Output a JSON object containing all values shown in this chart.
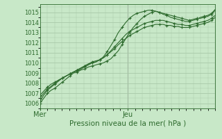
{
  "title": "",
  "xlabel": "Pression niveau de la mer( hPa )",
  "ylabel": "",
  "bg_color": "#c8e8c8",
  "grid_color": "#a8c8a8",
  "line_color": "#2d6a2d",
  "marker_color": "#2d6a2d",
  "xlim": [
    0,
    48
  ],
  "ylim": [
    1005.5,
    1015.8
  ],
  "yticks": [
    1006,
    1007,
    1008,
    1009,
    1010,
    1011,
    1012,
    1013,
    1014,
    1015
  ],
  "xtick_positions": [
    0,
    24
  ],
  "xtick_labels": [
    "Mer",
    "Jeu"
  ],
  "vline_x": 24,
  "series": [
    [
      1006.0,
      1006.5,
      1007.0,
      1007.3,
      1007.5,
      1007.8,
      1008.1,
      1008.4,
      1008.7,
      1009.0,
      1009.1,
      1009.3,
      1009.4,
      1009.6,
      1009.7,
      1009.8,
      1009.9,
      1010.0,
      1010.2,
      1010.4,
      1010.8,
      1011.2,
      1011.8,
      1012.4,
      1013.0,
      1013.5,
      1013.9,
      1014.3,
      1014.6,
      1014.8,
      1015.0,
      1015.1,
      1015.0,
      1014.9,
      1014.8,
      1014.7,
      1014.6,
      1014.5,
      1014.4,
      1014.3,
      1014.2,
      1014.3,
      1014.4,
      1014.4,
      1014.5,
      1014.6,
      1014.8,
      1015.2
    ],
    [
      1006.2,
      1006.8,
      1007.3,
      1007.6,
      1007.9,
      1008.2,
      1008.5,
      1008.7,
      1008.9,
      1009.1,
      1009.2,
      1009.4,
      1009.6,
      1009.8,
      1010.0,
      1010.1,
      1010.3,
      1010.6,
      1011.1,
      1011.7,
      1012.3,
      1013.0,
      1013.5,
      1014.0,
      1014.4,
      1014.7,
      1014.9,
      1015.0,
      1015.1,
      1015.2,
      1015.2,
      1015.1,
      1015.0,
      1014.8,
      1014.7,
      1014.5,
      1014.4,
      1014.3,
      1014.2,
      1014.1,
      1014.1,
      1014.2,
      1014.3,
      1014.5,
      1014.6,
      1014.7,
      1014.9,
      1015.3
    ],
    [
      1006.5,
      1007.0,
      1007.4,
      1007.7,
      1008.0,
      1008.3,
      1008.5,
      1008.7,
      1008.9,
      1009.1,
      1009.3,
      1009.5,
      1009.7,
      1009.9,
      1010.0,
      1010.1,
      1010.3,
      1010.5,
      1010.8,
      1011.2,
      1011.6,
      1012.0,
      1012.4,
      1012.8,
      1013.1,
      1013.3,
      1013.5,
      1013.7,
      1013.9,
      1014.0,
      1014.1,
      1014.2,
      1014.2,
      1014.2,
      1014.1,
      1014.0,
      1013.9,
      1013.8,
      1013.8,
      1013.7,
      1013.7,
      1013.8,
      1013.9,
      1014.0,
      1014.1,
      1014.2,
      1014.4,
      1014.7
    ],
    [
      1006.8,
      1007.2,
      1007.6,
      1007.9,
      1008.1,
      1008.3,
      1008.5,
      1008.7,
      1008.9,
      1009.1,
      1009.3,
      1009.5,
      1009.7,
      1009.9,
      1010.1,
      1010.2,
      1010.3,
      1010.5,
      1010.8,
      1011.1,
      1011.4,
      1011.8,
      1012.1,
      1012.4,
      1012.7,
      1012.9,
      1013.1,
      1013.3,
      1013.5,
      1013.6,
      1013.7,
      1013.8,
      1013.8,
      1013.8,
      1013.7,
      1013.7,
      1013.6,
      1013.6,
      1013.5,
      1013.5,
      1013.5,
      1013.6,
      1013.7,
      1013.8,
      1013.9,
      1014.0,
      1014.2,
      1014.5
    ]
  ]
}
